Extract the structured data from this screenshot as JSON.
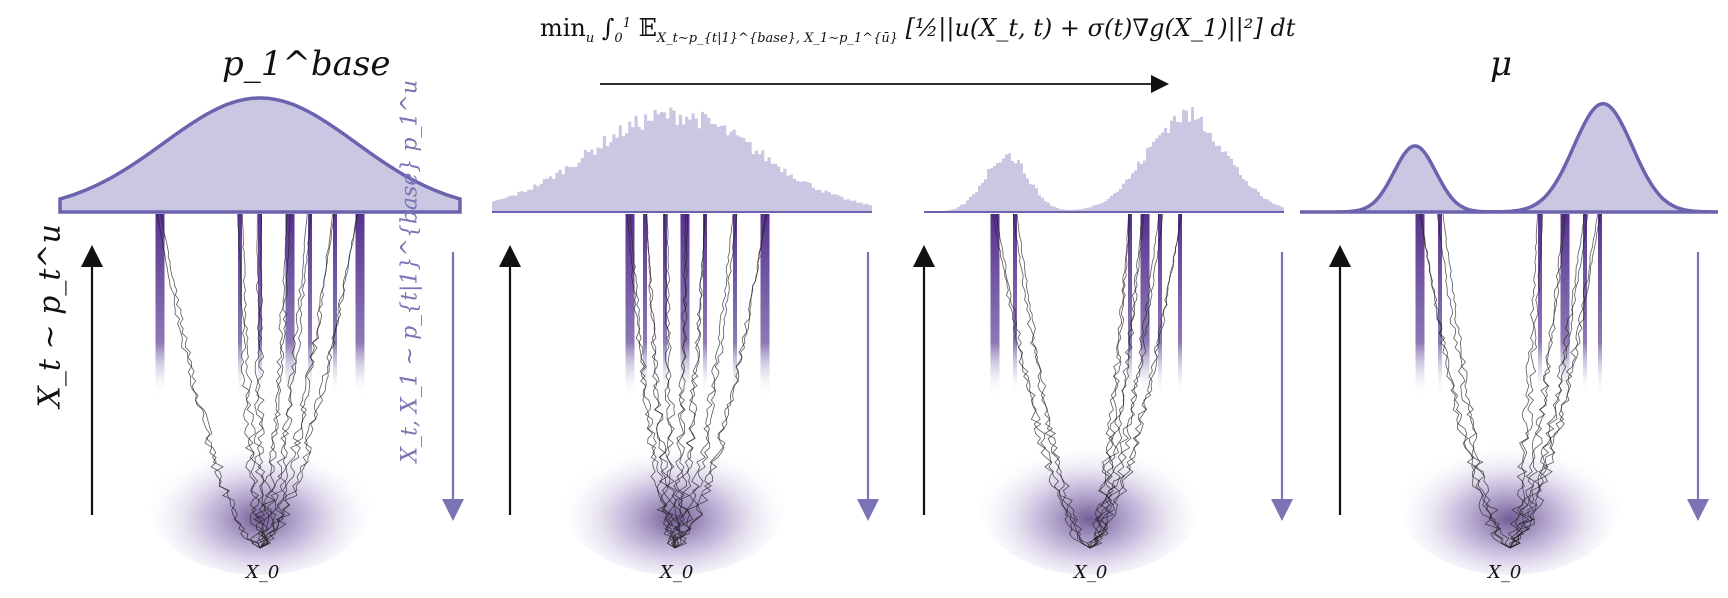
{
  "objective": {
    "min": "min",
    "min_sub": "u",
    "integral": "∫",
    "int_lower": "0",
    "int_upper": "1",
    "expect": "𝔼",
    "expect_sub": "X_t∼p_{t|1}^{base}, X_1∼p_1^{ū}",
    "body": "[½||u(X_t, t) + σ(t)∇g(X_1)||²] dt"
  },
  "panels": [
    {
      "id": "base",
      "top_label": "p_1^base",
      "x0_label": "X_0"
    },
    {
      "id": "iter-1",
      "top_label": "",
      "x0_label": "X_0"
    },
    {
      "id": "iter-2",
      "top_label": "",
      "x0_label": "X_0"
    },
    {
      "id": "target",
      "top_label": "μ",
      "x0_label": "X_0"
    }
  ],
  "side_labels": {
    "forward": "X_t ∼ p_t^u",
    "backward": "X_t, X_1 ∼ p_{t|1}^{base} p_1^u"
  },
  "colors": {
    "density_fill": "#c9c7e2",
    "density_edge": "#6b63ad",
    "path_dark": "#3a0e7a",
    "trajectory": "#222222",
    "arrow_up": "#111111",
    "arrow_down": "#7a74b4"
  }
}
